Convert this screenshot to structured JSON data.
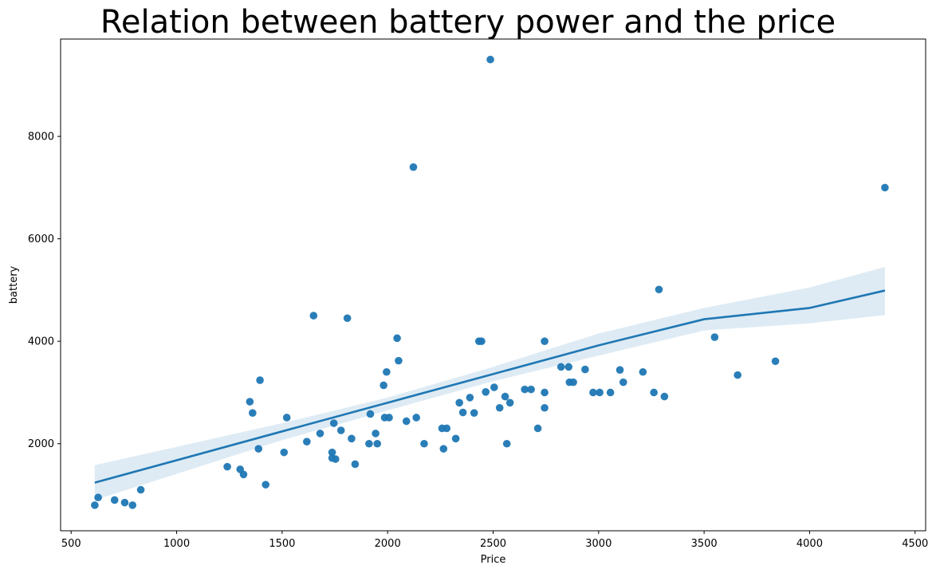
{
  "chart_data": {
    "type": "scatter",
    "title": "Relation between battery power and the price",
    "xlabel": "Price",
    "ylabel": "battery",
    "xlim": [
      450,
      4550
    ],
    "ylim": [
      300,
      9900
    ],
    "xticks": [
      500,
      1000,
      1500,
      2000,
      2500,
      3000,
      3500,
      4000,
      4500
    ],
    "yticks": [
      2000,
      4000,
      6000,
      8000
    ],
    "grid": false,
    "colors": {
      "points": "#1f77b4",
      "line": "#1f77b4",
      "band": "#1f77b4"
    },
    "points": [
      [
        612,
        800
      ],
      [
        628,
        950
      ],
      [
        706,
        900
      ],
      [
        754,
        850
      ],
      [
        791,
        800
      ],
      [
        830,
        1100
      ],
      [
        1240,
        1550
      ],
      [
        1301,
        1500
      ],
      [
        1317,
        1400
      ],
      [
        1347,
        2820
      ],
      [
        1360,
        2600
      ],
      [
        1388,
        1900
      ],
      [
        1395,
        3240
      ],
      [
        1422,
        1200
      ],
      [
        1509,
        1830
      ],
      [
        1522,
        2510
      ],
      [
        1617,
        2040
      ],
      [
        1649,
        4500
      ],
      [
        1680,
        2200
      ],
      [
        1737,
        1830
      ],
      [
        1737,
        1720
      ],
      [
        1745,
        2400
      ],
      [
        1753,
        1700
      ],
      [
        1779,
        2260
      ],
      [
        1809,
        4450
      ],
      [
        1829,
        2100
      ],
      [
        1846,
        1600
      ],
      [
        1912,
        2000
      ],
      [
        1918,
        2580
      ],
      [
        1943,
        2200
      ],
      [
        1951,
        2000
      ],
      [
        1981,
        3140
      ],
      [
        1986,
        2510
      ],
      [
        1995,
        3400
      ],
      [
        2007,
        2510
      ],
      [
        2045,
        4060
      ],
      [
        2052,
        3620
      ],
      [
        2089,
        2440
      ],
      [
        2122,
        7400
      ],
      [
        2136,
        2510
      ],
      [
        2173,
        2000
      ],
      [
        2258,
        2300
      ],
      [
        2265,
        1900
      ],
      [
        2280,
        2300
      ],
      [
        2323,
        2100
      ],
      [
        2340,
        2800
      ],
      [
        2357,
        2610
      ],
      [
        2390,
        2900
      ],
      [
        2410,
        2600
      ],
      [
        2433,
        4000
      ],
      [
        2445,
        4000
      ],
      [
        2465,
        3010
      ],
      [
        2487,
        9500
      ],
      [
        2505,
        3100
      ],
      [
        2531,
        2700
      ],
      [
        2557,
        2920
      ],
      [
        2565,
        2000
      ],
      [
        2580,
        2800
      ],
      [
        2650,
        3060
      ],
      [
        2680,
        3060
      ],
      [
        2712,
        2300
      ],
      [
        2744,
        4000
      ],
      [
        2744,
        3000
      ],
      [
        2744,
        2700
      ],
      [
        2822,
        3500
      ],
      [
        2858,
        3500
      ],
      [
        2862,
        3200
      ],
      [
        2880,
        3200
      ],
      [
        2936,
        3450
      ],
      [
        2974,
        3000
      ],
      [
        3005,
        3000
      ],
      [
        3056,
        3000
      ],
      [
        3101,
        3440
      ],
      [
        3117,
        3200
      ],
      [
        3210,
        3400
      ],
      [
        3262,
        3000
      ],
      [
        3286,
        5010
      ],
      [
        3312,
        2920
      ],
      [
        3550,
        4080
      ],
      [
        3659,
        3340
      ],
      [
        3838,
        3610
      ],
      [
        4357,
        7000
      ]
    ],
    "regression": {
      "x": [
        612,
        1500,
        2000,
        2500,
        3000,
        3500,
        4000,
        4357
      ],
      "y": [
        1240,
        2240,
        2800,
        3360,
        3920,
        4430,
        4650,
        4990
      ],
      "ci_upper": [
        1580,
        2400,
        2900,
        3500,
        4150,
        4650,
        5050,
        5450
      ],
      "ci_lower": [
        900,
        2070,
        2650,
        3220,
        3720,
        4210,
        4350,
        4510
      ]
    }
  }
}
